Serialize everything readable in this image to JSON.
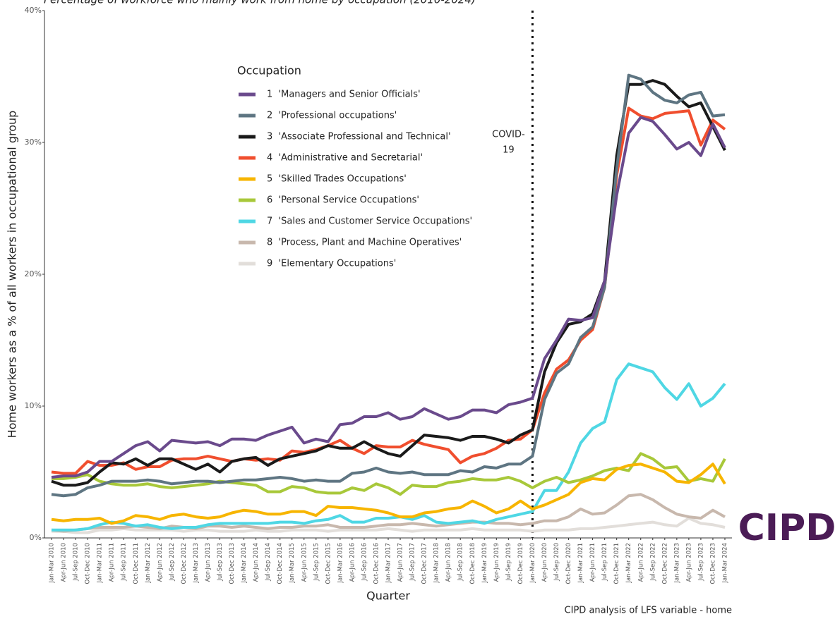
{
  "chart_data": {
    "type": "line",
    "title": "Percentage of workforce who mainly work from home by occupation (2010-2024)",
    "y_label": "Home workers as a % of all workers in occupational group",
    "x_label": "Quarter",
    "legend_title": "Occupation",
    "source": "CIPD analysis of LFS variable - home",
    "logo": "CIPD",
    "annotation": {
      "category": "Jan-Mar 2020",
      "lines": [
        "COVID-",
        "19"
      ]
    },
    "categories": [
      "Jan-Mar 2010",
      "Apr-Jun 2010",
      "Jul-Sep 2010",
      "Oct-Dec 2010",
      "Jan-Mar 2011",
      "Apr-Jun 2011",
      "Jul-Sep 2011",
      "Oct-Dec 2011",
      "Jan-Mar 2012",
      "Apr-Jun 2012",
      "Jul-Sep 2012",
      "Oct-Dec 2012",
      "Jan-Mar 2013",
      "Apr-Jun 2013",
      "Jul-Sep 2013",
      "Oct-Dec 2013",
      "Jan-Mar 2014",
      "Apr-Jun 2014",
      "Jul-Sep 2014",
      "Oct-Dec 2014",
      "Jan-Mar 2015",
      "Apr-Jun 2015",
      "Jul-Sep 2015",
      "Oct-Dec 2015",
      "Jan-Mar 2016",
      "Apr-Jun 2016",
      "Jul-Sep 2016",
      "Oct-Dec 2016",
      "Jan-Mar 2017",
      "Apr-Jun 2017",
      "Jul-Sep 2017",
      "Oct-Dec 2017",
      "Jan-Mar 2018",
      "Apr-Jun 2018",
      "Jul-Sep 2018",
      "Oct-Dec 2018",
      "Jan-Mar 2019",
      "Apr-Jun 2019",
      "Jul-Sep 2019",
      "Oct-Dec 2019",
      "Jan-Mar 2020",
      "Apr-Jun 2020",
      "Jul-Sep 2020",
      "Oct-Dec 2020",
      "Jan-Mar 2021",
      "Apr-Jun 2021",
      "Jul-Sep 2021",
      "Oct-Dec 2021",
      "Jan-Mar 2022",
      "Apr-Jun 2022",
      "Jul-Sep 2022",
      "Oct-Dec 2022",
      "Jan-Mar 2023",
      "Apr-Jun 2023",
      "Jul-Sep 2023",
      "Oct-Dec 2023",
      "Jan-Mar 2024"
    ],
    "ylim": [
      0,
      40
    ],
    "yticks": [
      {
        "value": 0,
        "label": "0%"
      },
      {
        "value": 10,
        "label": "10%"
      },
      {
        "value": 20,
        "label": "20%"
      },
      {
        "value": 30,
        "label": "30%"
      },
      {
        "value": 40,
        "label": "40%"
      }
    ],
    "series": [
      {
        "name": "1  'Managers and Senior Officials'",
        "color": "#6a4a8c",
        "values": [
          4.6,
          4.7,
          4.7,
          5.0,
          5.8,
          5.8,
          6.4,
          7.0,
          7.3,
          6.6,
          7.4,
          7.3,
          7.2,
          7.3,
          7.0,
          7.5,
          7.5,
          7.4,
          7.8,
          8.1,
          8.4,
          7.2,
          7.5,
          7.3,
          8.6,
          8.7,
          9.2,
          9.2,
          9.5,
          9.0,
          9.2,
          9.8,
          9.4,
          9.0,
          9.2,
          9.7,
          9.7,
          9.5,
          10.1,
          10.3,
          10.6,
          13.6,
          15.0,
          16.6,
          16.5,
          16.7,
          19.5,
          26.0,
          30.7,
          31.9,
          31.6,
          30.6,
          29.5,
          30.0,
          29.0,
          31.4,
          29.6
        ]
      },
      {
        "name": "2  'Professional occupations'",
        "color": "#5e7582",
        "values": [
          3.3,
          3.2,
          3.3,
          3.8,
          4.0,
          4.3,
          4.3,
          4.3,
          4.4,
          4.3,
          4.1,
          4.2,
          4.3,
          4.3,
          4.2,
          4.3,
          4.4,
          4.4,
          4.5,
          4.6,
          4.5,
          4.3,
          4.4,
          4.3,
          4.3,
          4.9,
          5.0,
          5.3,
          5.0,
          4.9,
          5.0,
          4.8,
          4.8,
          4.8,
          5.1,
          5.0,
          5.4,
          5.3,
          5.6,
          5.6,
          6.2,
          10.5,
          12.5,
          13.2,
          15.2,
          16.0,
          19.0,
          28.0,
          35.1,
          34.8,
          33.8,
          33.2,
          33.0,
          33.6,
          33.8,
          32.0,
          32.1
        ]
      },
      {
        "name": "3  'Associate Professional and Technical'",
        "color": "#1a1a1a",
        "values": [
          4.3,
          4.0,
          4.0,
          4.2,
          5.0,
          5.7,
          5.6,
          6.0,
          5.5,
          6.0,
          6.0,
          5.6,
          5.2,
          5.6,
          5.0,
          5.8,
          6.0,
          6.1,
          5.5,
          6.0,
          6.2,
          6.4,
          6.6,
          7.0,
          6.8,
          6.8,
          7.3,
          6.8,
          6.4,
          6.2,
          7.0,
          7.8,
          7.7,
          7.6,
          7.4,
          7.7,
          7.7,
          7.5,
          7.2,
          7.8,
          8.2,
          12.6,
          14.8,
          16.2,
          16.4,
          17.0,
          19.5,
          29.0,
          34.4,
          34.4,
          34.7,
          34.4,
          33.5,
          32.7,
          33.0,
          31.2,
          29.4
        ]
      },
      {
        "name": "4  'Administrative and Secretarial'",
        "color": "#f04e2e",
        "values": [
          5.0,
          4.9,
          4.9,
          5.8,
          5.5,
          5.5,
          5.7,
          5.2,
          5.4,
          5.4,
          5.9,
          6.0,
          6.0,
          6.2,
          6.0,
          5.8,
          6.0,
          5.9,
          6.0,
          5.9,
          6.6,
          6.5,
          6.7,
          7.0,
          7.4,
          6.8,
          6.4,
          7.0,
          6.9,
          6.9,
          7.4,
          7.1,
          6.9,
          6.7,
          5.7,
          6.2,
          6.4,
          6.8,
          7.4,
          7.5,
          8.2,
          11.0,
          12.8,
          13.5,
          15.0,
          15.8,
          19.0,
          27.5,
          32.6,
          32.0,
          31.8,
          32.2,
          32.3,
          32.4,
          29.8,
          31.7,
          31.0
        ]
      },
      {
        "name": "5  'Skilled Trades Occupations'",
        "color": "#f7b500",
        "values": [
          1.4,
          1.3,
          1.4,
          1.4,
          1.5,
          1.1,
          1.3,
          1.7,
          1.6,
          1.4,
          1.7,
          1.8,
          1.6,
          1.5,
          1.6,
          1.9,
          2.1,
          2.0,
          1.8,
          1.8,
          2.0,
          2.0,
          1.7,
          2.4,
          2.3,
          2.3,
          2.2,
          2.1,
          1.9,
          1.6,
          1.6,
          1.9,
          2.0,
          2.2,
          2.3,
          2.8,
          2.4,
          1.9,
          2.2,
          2.8,
          2.2,
          2.5,
          2.9,
          3.3,
          4.2,
          4.5,
          4.4,
          5.2,
          5.5,
          5.6,
          5.3,
          5.0,
          4.3,
          4.2,
          4.8,
          5.6,
          4.1
        ]
      },
      {
        "name": "6  'Personal Service Occupations'",
        "color": "#a8c83a",
        "values": [
          4.5,
          4.5,
          4.6,
          4.8,
          4.3,
          4.1,
          4.0,
          4.0,
          4.1,
          3.9,
          3.8,
          3.9,
          4.0,
          4.1,
          4.3,
          4.2,
          4.1,
          4.0,
          3.5,
          3.5,
          3.9,
          3.8,
          3.5,
          3.4,
          3.4,
          3.8,
          3.6,
          4.1,
          3.8,
          3.3,
          4.0,
          3.9,
          3.9,
          4.2,
          4.3,
          4.5,
          4.4,
          4.4,
          4.6,
          4.3,
          3.8,
          4.3,
          4.6,
          4.2,
          4.4,
          4.7,
          5.1,
          5.3,
          5.1,
          6.4,
          6.0,
          5.3,
          5.4,
          4.3,
          4.5,
          4.3,
          6.0
        ]
      },
      {
        "name": "7  'Sales and Customer Service Occupations'",
        "color": "#4fd7e4",
        "values": [
          0.6,
          0.6,
          0.6,
          0.7,
          1.0,
          1.2,
          1.1,
          0.9,
          1.0,
          0.8,
          0.7,
          0.8,
          0.8,
          1.0,
          1.1,
          1.1,
          1.1,
          1.1,
          1.1,
          1.2,
          1.2,
          1.1,
          1.3,
          1.4,
          1.7,
          1.2,
          1.2,
          1.5,
          1.5,
          1.6,
          1.4,
          1.7,
          1.2,
          1.1,
          1.2,
          1.3,
          1.1,
          1.4,
          1.6,
          1.8,
          2.0,
          3.6,
          3.6,
          5.0,
          7.2,
          8.3,
          8.8,
          12.0,
          13.2,
          12.9,
          12.6,
          11.4,
          10.5,
          11.7,
          10.0,
          10.6,
          11.7
        ]
      },
      {
        "name": "8  'Process, Plant and Machine Operatives'",
        "color": "#c8b8ad",
        "values": [
          0.6,
          0.5,
          0.6,
          0.7,
          0.8,
          0.8,
          0.8,
          0.9,
          0.8,
          0.7,
          0.9,
          0.8,
          0.7,
          0.9,
          0.9,
          0.8,
          0.9,
          0.8,
          0.7,
          0.8,
          0.8,
          0.9,
          0.9,
          1.0,
          0.8,
          0.8,
          0.8,
          0.9,
          1.0,
          1.0,
          1.1,
          1.0,
          0.9,
          1.0,
          1.1,
          1.2,
          1.2,
          1.1,
          1.1,
          1.0,
          1.1,
          1.3,
          1.3,
          1.6,
          2.2,
          1.8,
          1.9,
          2.5,
          3.2,
          3.3,
          2.9,
          2.3,
          1.8,
          1.6,
          1.5,
          2.1,
          1.6
        ]
      },
      {
        "name": "9  'Elementary Occupations'",
        "color": "#e2deda",
        "values": [
          0.5,
          0.5,
          0.4,
          0.4,
          0.6,
          0.6,
          0.7,
          0.6,
          0.6,
          0.6,
          0.6,
          0.5,
          0.6,
          0.6,
          0.5,
          0.5,
          0.5,
          0.6,
          0.5,
          0.5,
          0.6,
          0.6,
          0.6,
          0.5,
          0.6,
          0.6,
          0.6,
          0.6,
          0.7,
          0.6,
          0.5,
          0.6,
          0.6,
          0.6,
          0.6,
          0.7,
          0.6,
          0.6,
          0.6,
          0.6,
          0.5,
          0.6,
          0.6,
          0.6,
          0.7,
          0.7,
          0.8,
          0.9,
          1.0,
          1.1,
          1.2,
          1.0,
          0.9,
          1.5,
          1.1,
          1.0,
          0.8
        ]
      }
    ]
  }
}
